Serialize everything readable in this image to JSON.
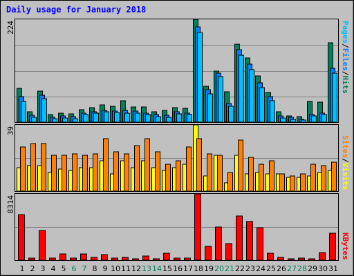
{
  "title": "Daily usage for January 2018",
  "colors": {
    "hits": "#00805c",
    "files": "#0080ff",
    "pages": "#00c0ff",
    "visits": "#ffff00",
    "sites": "#ff8000",
    "kbytes": "#ff0000",
    "weekday_label": "#000000",
    "weekend_label": "#00805c",
    "separator": "#000000"
  },
  "chart_data": [
    {
      "type": "bar",
      "panel": "top",
      "ymax_label": "224",
      "ylim": [
        0,
        224
      ],
      "legend_parts": [
        "Pages",
        "/",
        "Files",
        "/",
        "Hits"
      ],
      "categories": [
        "1",
        "2",
        "3",
        "4",
        "5",
        "6",
        "7",
        "8",
        "9",
        "10",
        "11",
        "12",
        "13",
        "14",
        "15",
        "16",
        "17",
        "18",
        "19",
        "20",
        "21",
        "22",
        "23",
        "24",
        "25",
        "26",
        "27",
        "28",
        "29",
        "30",
        "31"
      ],
      "weekend_days": [
        "6",
        "7",
        "13",
        "14",
        "20",
        "21",
        "27",
        "28"
      ],
      "series": [
        {
          "name": "Hits",
          "values": [
            73,
            22,
            68,
            16,
            19,
            18,
            27,
            31,
            37,
            35,
            46,
            33,
            33,
            23,
            25,
            32,
            30,
            224,
            78,
            111,
            66,
            170,
            140,
            100,
            65,
            22,
            14,
            12,
            45,
            43,
            173
          ]
        },
        {
          "name": "Files",
          "values": [
            55,
            15,
            59,
            11,
            13,
            12,
            20,
            23,
            25,
            24,
            25,
            24,
            20,
            16,
            15,
            22,
            20,
            208,
            70,
            107,
            41,
            158,
            127,
            85,
            55,
            13,
            10,
            6,
            16,
            20,
            118
          ]
        },
        {
          "name": "Pages",
          "values": [
            45,
            10,
            51,
            7,
            9,
            8,
            16,
            20,
            22,
            21,
            20,
            20,
            16,
            12,
            11,
            18,
            16,
            196,
            62,
            99,
            34,
            146,
            114,
            75,
            46,
            9,
            6,
            4,
            13,
            17,
            106
          ]
        }
      ]
    },
    {
      "type": "bar",
      "panel": "middle",
      "ymax_label": "39",
      "ylim": [
        0,
        39
      ],
      "legend_parts": [
        "Sites",
        "/",
        "Visits"
      ],
      "categories": [
        "1",
        "2",
        "3",
        "4",
        "5",
        "6",
        "7",
        "8",
        "9",
        "10",
        "11",
        "12",
        "13",
        "14",
        "15",
        "16",
        "17",
        "18",
        "19",
        "20",
        "21",
        "22",
        "23",
        "24",
        "25",
        "26",
        "27",
        "28",
        "29",
        "30",
        "31"
      ],
      "series": [
        {
          "name": "Visits",
          "values": [
            14,
            15,
            15,
            11,
            13,
            12,
            14,
            14,
            18,
            10,
            18,
            14,
            18,
            14,
            12,
            14,
            16,
            39,
            9,
            21,
            5,
            21,
            10,
            11,
            10,
            10,
            8,
            8,
            9,
            11,
            12
          ]
        },
        {
          "name": "Sites",
          "values": [
            26,
            28,
            28,
            21,
            21,
            22,
            21,
            22,
            31,
            23,
            22,
            27,
            31,
            23,
            16,
            18,
            26,
            31,
            22,
            21,
            11,
            30,
            20,
            16,
            18,
            10,
            9,
            10,
            16,
            15,
            17
          ]
        }
      ]
    },
    {
      "type": "bar",
      "panel": "bottom",
      "ymax_label": "8314",
      "ylim": [
        0,
        8314
      ],
      "legend_parts": [
        "KBytes"
      ],
      "categories": [
        "1",
        "2",
        "3",
        "4",
        "5",
        "6",
        "7",
        "8",
        "9",
        "10",
        "11",
        "12",
        "13",
        "14",
        "15",
        "16",
        "17",
        "18",
        "19",
        "20",
        "21",
        "22",
        "23",
        "24",
        "25",
        "26",
        "27",
        "28",
        "29",
        "30",
        "31"
      ],
      "series": [
        {
          "name": "KBytes",
          "values": [
            5700,
            300,
            3700,
            250,
            780,
            300,
            800,
            350,
            720,
            300,
            350,
            180,
            540,
            200,
            900,
            250,
            280,
            8314,
            1730,
            4170,
            2100,
            5520,
            4830,
            4060,
            860,
            320,
            200,
            260,
            180,
            950,
            3400
          ]
        }
      ]
    }
  ]
}
